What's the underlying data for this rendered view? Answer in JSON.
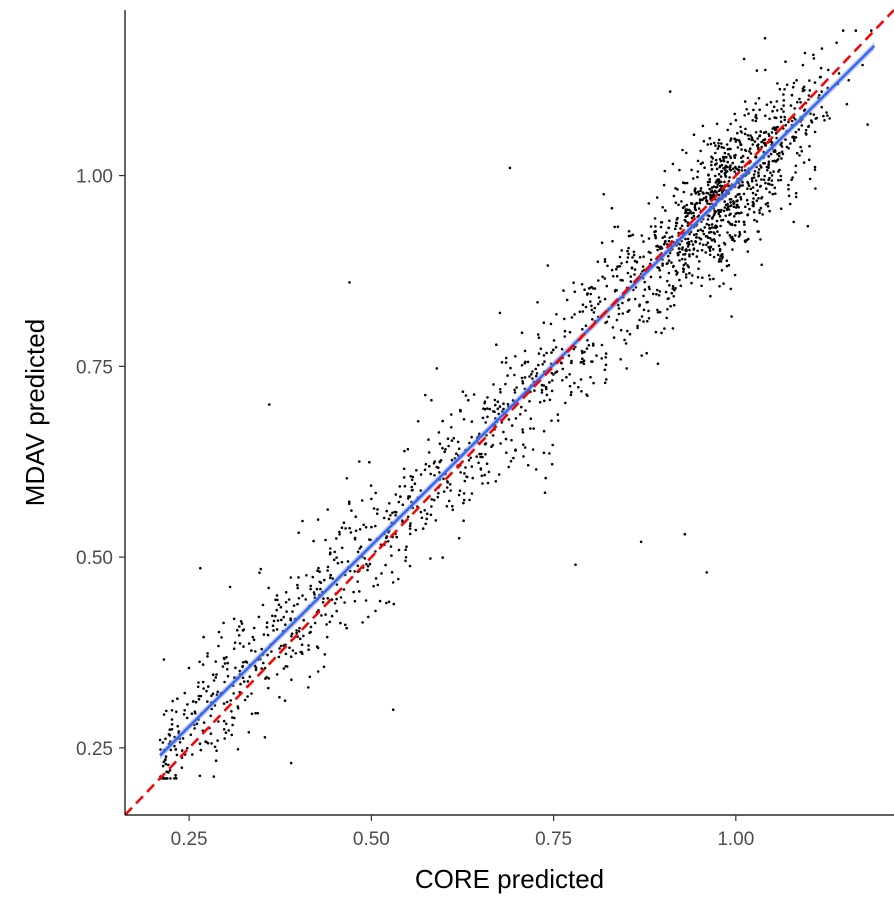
{
  "chart_data": {
    "type": "scatter",
    "title": "",
    "xlabel": "CORE predicted",
    "ylabel": "MDAV predicted",
    "xlim": [
      0.162,
      1.217
    ],
    "ylim": [
      0.162,
      1.217
    ],
    "x_ticks": [
      0.25,
      0.5,
      0.75,
      1.0
    ],
    "x_tick_labels": [
      "0.25",
      "0.50",
      "0.75",
      "1.00"
    ],
    "y_ticks": [
      0.25,
      0.5,
      0.75,
      1.0
    ],
    "y_tick_labels": [
      "0.25",
      "0.50",
      "0.75",
      "1.00"
    ],
    "grid": false,
    "legend": "none",
    "points_summary": {
      "n_points": 2000,
      "x_range": [
        0.21,
        1.19
      ],
      "y_range": [
        0.21,
        1.19
      ],
      "dense_cluster_center": [
        1.0,
        1.0
      ]
    },
    "outliers": [
      {
        "x": 0.36,
        "y": 0.7
      },
      {
        "x": 0.47,
        "y": 0.86
      },
      {
        "x": 0.93,
        "y": 0.53
      },
      {
        "x": 0.96,
        "y": 0.48
      },
      {
        "x": 0.87,
        "y": 0.52
      },
      {
        "x": 0.78,
        "y": 0.49
      },
      {
        "x": 0.53,
        "y": 0.3
      },
      {
        "x": 0.39,
        "y": 0.23
      },
      {
        "x": 0.69,
        "y": 1.01
      },
      {
        "x": 1.04,
        "y": 1.18
      },
      {
        "x": 0.91,
        "y": 1.11
      },
      {
        "x": 1.14,
        "y": 1.12
      }
    ],
    "fit_line": {
      "name": "linear fit",
      "x": [
        0.21,
        1.19
      ],
      "y": [
        0.24,
        1.17
      ],
      "color": "#3366FF"
    },
    "reference_line": {
      "name": "y = x",
      "x": [
        0.162,
        1.217
      ],
      "y": [
        0.162,
        1.217
      ],
      "color": "#FF0000",
      "style": "dashed"
    },
    "colors": {
      "points": "#000000",
      "fit": "#3366FF",
      "fit_band": "#9aa6c6",
      "reference": "#FF0000",
      "axis": "#000000",
      "tick_text": "#4d4d4d"
    }
  }
}
